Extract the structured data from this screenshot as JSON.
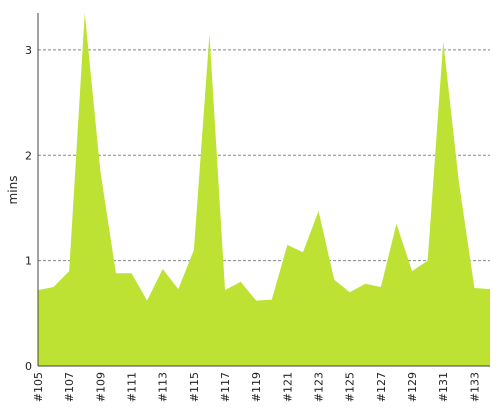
{
  "chart_data": {
    "type": "area",
    "title": "",
    "xlabel": "",
    "ylabel": "mins",
    "ylim": [
      0,
      3.35
    ],
    "yticks": [
      0,
      1,
      2,
      3
    ],
    "grid": "horizontal dashed",
    "legend": "none",
    "colors": {
      "fill": "#bde234",
      "grid": "#888888",
      "axis": "#444444"
    },
    "x": [
      105,
      106,
      107,
      108,
      109,
      110,
      111,
      112,
      113,
      114,
      115,
      116,
      117,
      118,
      119,
      120,
      121,
      122,
      123,
      124,
      125,
      126,
      127,
      128,
      129,
      130,
      131,
      132,
      133,
      134
    ],
    "xtick_labels": [
      "#105",
      "#107",
      "#109",
      "#111",
      "#113",
      "#115",
      "#117",
      "#119",
      "#121",
      "#123",
      "#125",
      "#127",
      "#129",
      "#131",
      "#133"
    ],
    "series": [
      {
        "values": [
          0.72,
          0.75,
          0.9,
          3.35,
          1.85,
          0.88,
          0.88,
          0.62,
          0.92,
          0.73,
          1.1,
          3.15,
          0.72,
          0.8,
          0.62,
          0.63,
          1.15,
          1.08,
          1.47,
          0.82,
          0.7,
          0.78,
          0.75,
          1.35,
          0.9,
          1.0,
          3.08,
          1.75,
          0.74,
          0.73
        ]
      }
    ]
  }
}
